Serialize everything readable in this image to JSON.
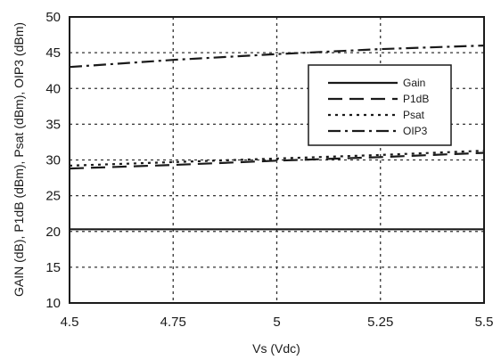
{
  "chart_data": {
    "type": "line",
    "title": "",
    "xlabel": "Vs (Vdc)",
    "ylabel": "GAIN (dB), P1dB (dBm), Psat (dBm), OIP3 (dBm)",
    "xlim": [
      4.5,
      5.5
    ],
    "ylim": [
      10,
      50
    ],
    "x_ticks": [
      "4.5",
      "4.75",
      "5",
      "5.25",
      "5.5"
    ],
    "y_ticks": [
      "10",
      "15",
      "20",
      "25",
      "30",
      "35",
      "40",
      "45",
      "50"
    ],
    "grid": true,
    "grid_style": "dotted",
    "legend_position": "top-right",
    "x": [
      4.5,
      4.75,
      5.0,
      5.25,
      5.5
    ],
    "series": [
      {
        "name": "Gain",
        "values": [
          20.3,
          20.3,
          20.3,
          20.3,
          20.3
        ],
        "dash": "solid"
      },
      {
        "name": "P1dB",
        "values": [
          28.8,
          29.3,
          29.9,
          30.4,
          31.0
        ],
        "dash": "long-dash"
      },
      {
        "name": "Psat",
        "values": [
          29.2,
          29.7,
          30.2,
          30.7,
          31.3
        ],
        "dash": "dotted"
      },
      {
        "name": "OIP3",
        "values": [
          43.0,
          44.0,
          44.8,
          45.5,
          46.0
        ],
        "dash": "dash-dot"
      }
    ]
  }
}
